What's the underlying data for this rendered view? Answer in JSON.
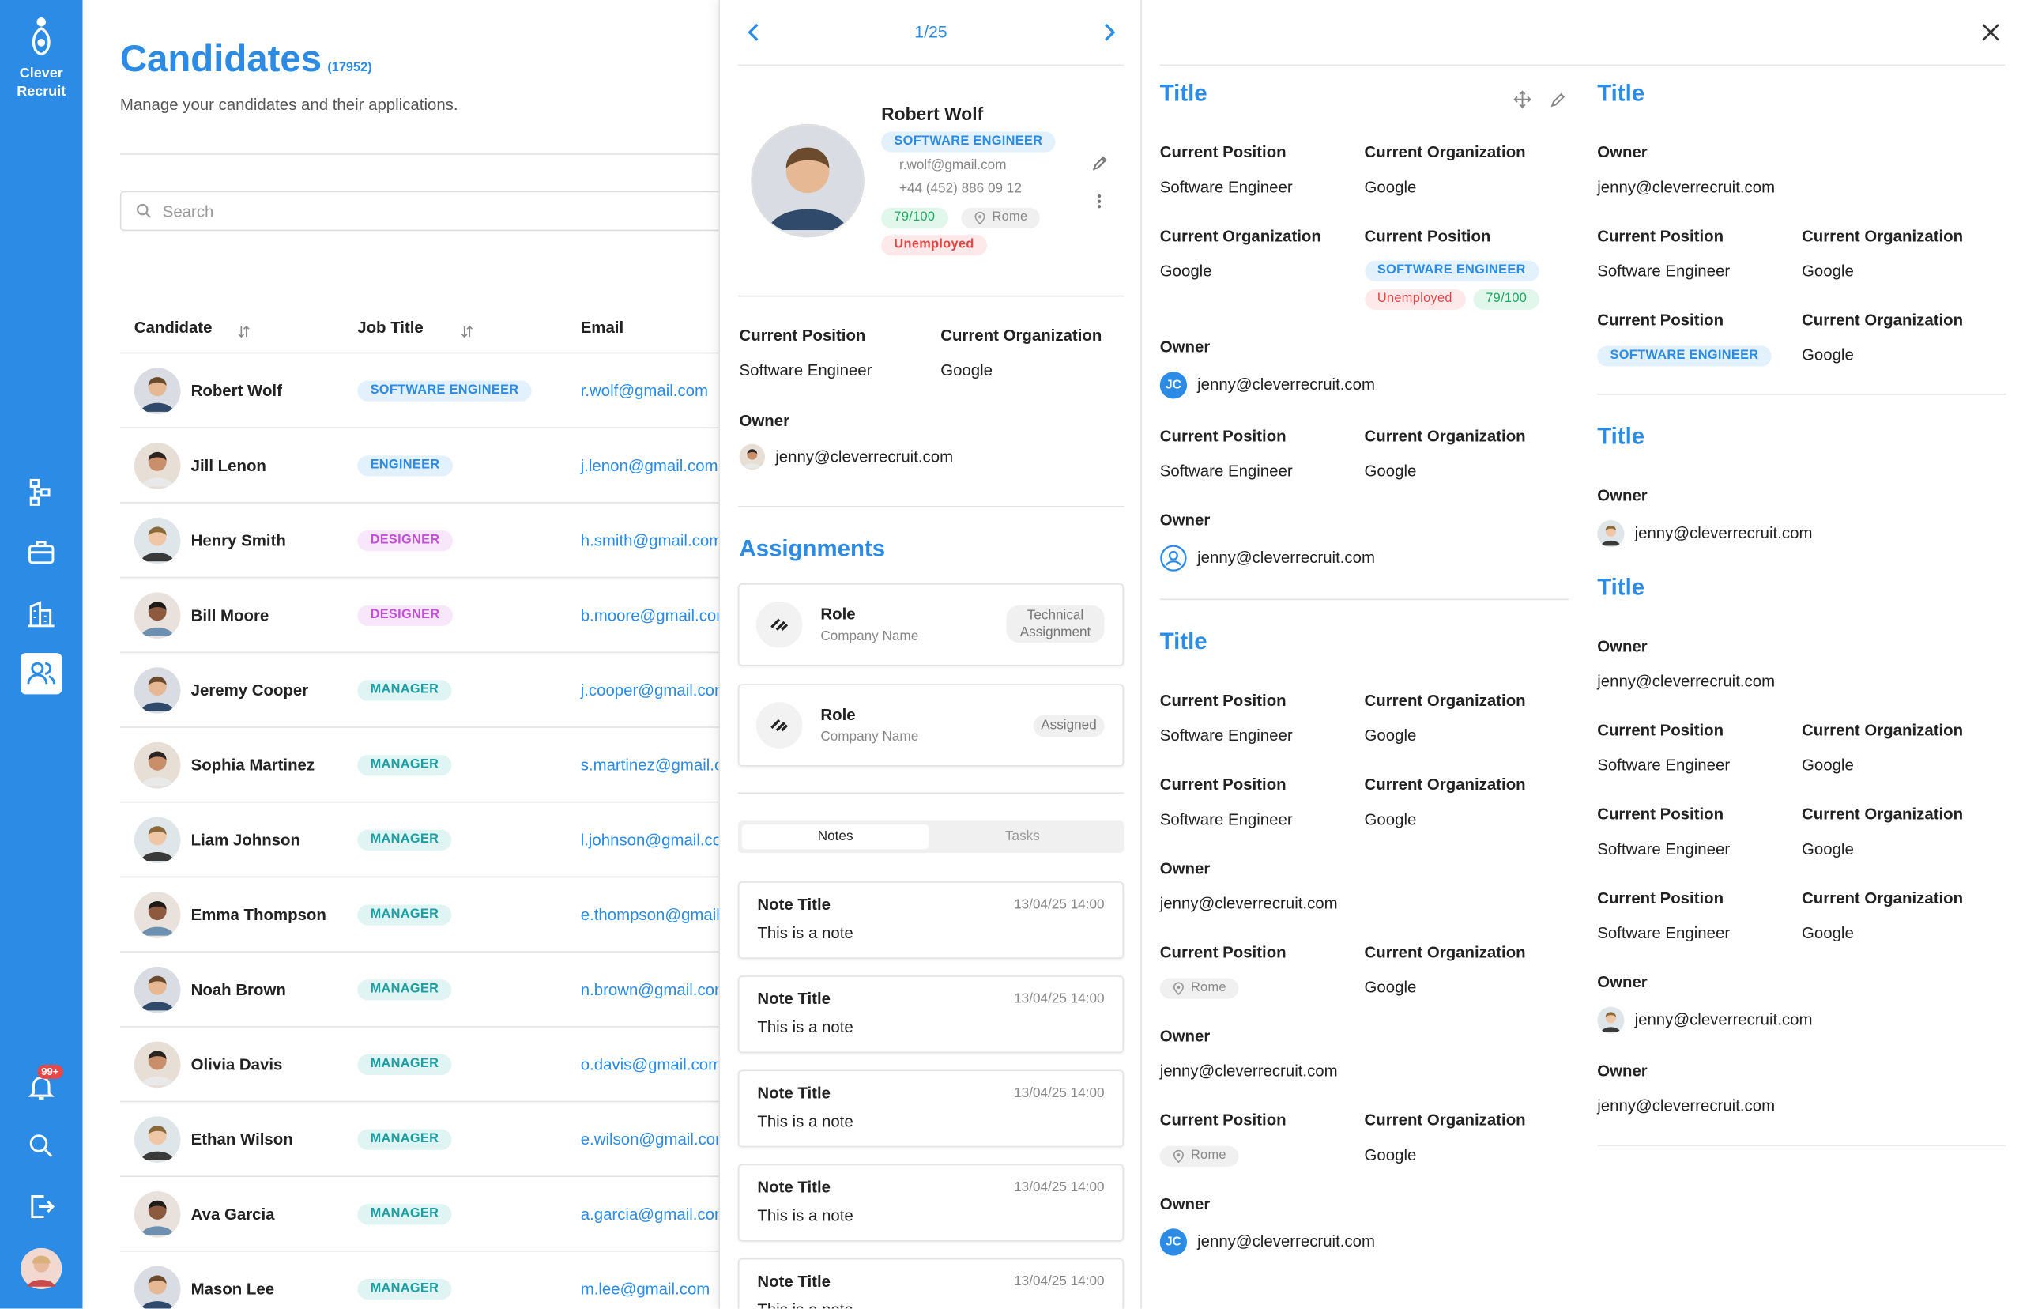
{
  "sidebar": {
    "brand_line1": "Clever",
    "brand_line2": "Recruit",
    "badge": "99+"
  },
  "header": {
    "title": "Candidates",
    "count": "(17952)",
    "subtitle": "Manage your candidates and their applications.",
    "search_placeholder": "Search"
  },
  "table": {
    "columns": [
      "Candidate",
      "Job Title",
      "Email"
    ],
    "rows": [
      {
        "name": "Robert Wolf",
        "job": "SOFTWARE ENGINEER",
        "email": "r.wolf@gmail.com",
        "job_style": "blue"
      },
      {
        "name": "Jill Lenon",
        "job": "ENGINEER",
        "email": "j.lenon@gmail.com",
        "job_style": "blue"
      },
      {
        "name": "Henry Smith",
        "job": "DESIGNER",
        "email": "h.smith@gmail.com",
        "job_style": "purple"
      },
      {
        "name": "Bill Moore",
        "job": "DESIGNER",
        "email": "b.moore@gmail.com",
        "job_style": "purple"
      },
      {
        "name": "Jeremy Cooper",
        "job": "MANAGER",
        "email": "j.cooper@gmail.com",
        "job_style": "teal"
      },
      {
        "name": "Sophia Martinez",
        "job": "MANAGER",
        "email": "s.martinez@gmail.com",
        "job_style": "teal"
      },
      {
        "name": "Liam Johnson",
        "job": "MANAGER",
        "email": "l.johnson@gmail.com",
        "job_style": "teal"
      },
      {
        "name": "Emma Thompson",
        "job": "MANAGER",
        "email": "e.thompson@gmail.com",
        "job_style": "teal"
      },
      {
        "name": "Noah Brown",
        "job": "MANAGER",
        "email": "n.brown@gmail.com",
        "job_style": "teal"
      },
      {
        "name": "Olivia Davis",
        "job": "MANAGER",
        "email": "o.davis@gmail.com",
        "job_style": "teal"
      },
      {
        "name": "Ethan Wilson",
        "job": "MANAGER",
        "email": "e.wilson@gmail.com",
        "job_style": "teal"
      },
      {
        "name": "Ava Garcia",
        "job": "MANAGER",
        "email": "a.garcia@gmail.com",
        "job_style": "teal"
      },
      {
        "name": "Mason Lee",
        "job": "MANAGER",
        "email": "m.lee@gmail.com",
        "job_style": "teal"
      }
    ]
  },
  "detail": {
    "pager": "1/25",
    "name": "Robert Wolf",
    "role": "SOFTWARE ENGINEER",
    "email": "r.wolf@gmail.com",
    "phone": "+44 (452) 886 09 12",
    "score": "79/100",
    "location": "Rome",
    "status": "Unemployed",
    "fields": [
      {
        "label": "Current Position",
        "value": "Software Engineer"
      },
      {
        "label": "Current Organization",
        "value": "Google"
      }
    ],
    "owner": {
      "label": "Owner",
      "value": "jenny@cleverrecruit.com"
    },
    "assignments_title": "Assignments",
    "assignments": [
      {
        "role": "Role",
        "company": "Company Name",
        "status": "Technical Assignment"
      },
      {
        "role": "Role",
        "company": "Company Name",
        "status": "Assigned"
      }
    ],
    "tabs": [
      "Notes",
      "Tasks"
    ],
    "notes": [
      {
        "title": "Note Title",
        "date": "13/04/25 14:00",
        "text": "This is a note"
      },
      {
        "title": "Note Title",
        "date": "13/04/25 14:00",
        "text": "This is a note"
      },
      {
        "title": "Note Title",
        "date": "13/04/25 14:00",
        "text": "This is a note"
      },
      {
        "title": "Note Title",
        "date": "13/04/25 14:00",
        "text": "This is a note"
      },
      {
        "title": "Note Title",
        "date": "13/04/25 14:00",
        "text": "This is a note"
      }
    ]
  },
  "panels": [
    {
      "blocks": [
        {
          "title": "Title",
          "actions": true
        },
        {
          "fields": [
            {
              "label": "Current Position",
              "value": "Software Engineer"
            },
            {
              "label": "Current Organization",
              "value": "Google"
            }
          ]
        },
        {
          "fields": [
            {
              "label": "Current Organization",
              "value": "Google"
            },
            {
              "label": "Current Position",
              "chips": [
                {
                  "text": "SOFTWARE ENGINEER",
                  "style": "blue"
                },
                {
                  "text": "Unemployed",
                  "style": "red"
                },
                {
                  "text": "79/100",
                  "style": "green"
                }
              ]
            }
          ]
        },
        {
          "fields": [
            {
              "label": "Owner",
              "value": "jenny@cleverrecruit.com",
              "avatar": "initials",
              "initials": "JC"
            }
          ]
        },
        {
          "fields": [
            {
              "label": "Current Position",
              "value": "Software Engineer"
            },
            {
              "label": "Current Organization",
              "value": "Google"
            }
          ]
        },
        {
          "fields": [
            {
              "label": "Owner",
              "value": "jenny@cleverrecruit.com",
              "avatar": "icon"
            }
          ]
        },
        {
          "divider": true
        },
        {
          "title": "Title"
        },
        {
          "fields": [
            {
              "label": "Current Position",
              "value": "Software Engineer"
            },
            {
              "label": "Current Organization",
              "value": "Google"
            }
          ]
        },
        {
          "fields": [
            {
              "label": "Current Position",
              "value": "Software Engineer"
            },
            {
              "label": "Current Organization",
              "value": "Google"
            }
          ]
        },
        {
          "fields": [
            {
              "label": "Owner",
              "value": "jenny@cleverrecruit.com"
            }
          ]
        },
        {
          "fields": [
            {
              "label": "Current Position",
              "chips": [
                {
                  "text": "Rome",
                  "style": "loc"
                }
              ]
            },
            {
              "label": "Current Organization",
              "value": "Google"
            }
          ]
        },
        {
          "fields": [
            {
              "label": "Owner",
              "value": "jenny@cleverrecruit.com"
            }
          ]
        },
        {
          "fields": [
            {
              "label": "Current Position",
              "chips": [
                {
                  "text": "Rome",
                  "style": "loc"
                }
              ]
            },
            {
              "label": "Current Organization",
              "value": "Google"
            }
          ]
        },
        {
          "fields": [
            {
              "label": "Owner",
              "value": "jenny@cleverrecruit.com",
              "avatar": "initials",
              "initials": "JC"
            }
          ]
        }
      ]
    },
    {
      "blocks": [
        {
          "title": "Title"
        },
        {
          "fields": [
            {
              "label": "Owner",
              "value": "jenny@cleverrecruit.com"
            }
          ]
        },
        {
          "fields": [
            {
              "label": "Current Position",
              "value": "Software Engineer"
            },
            {
              "label": "Current Organization",
              "value": "Google"
            }
          ]
        },
        {
          "fields": [
            {
              "label": "Current Position",
              "chips": [
                {
                  "text": "SOFTWARE ENGINEER",
                  "style": "blue"
                }
              ]
            },
            {
              "label": "Current Organization",
              "value": "Google"
            }
          ]
        },
        {
          "divider": true
        },
        {
          "title": "Title"
        },
        {
          "fields": [
            {
              "label": "Owner",
              "value": "jenny@cleverrecruit.com",
              "avatar": "photo"
            }
          ]
        },
        {
          "title": "Title"
        },
        {
          "fields": [
            {
              "label": "Owner",
              "value": "jenny@cleverrecruit.com"
            }
          ]
        },
        {
          "fields": [
            {
              "label": "Current Position",
              "value": "Software Engineer"
            },
            {
              "label": "Current Organization",
              "value": "Google"
            }
          ]
        },
        {
          "fields": [
            {
              "label": "Current Position",
              "value": "Software Engineer"
            },
            {
              "label": "Current Organization",
              "value": "Google"
            }
          ]
        },
        {
          "fields": [
            {
              "label": "Current Position",
              "value": "Software Engineer"
            },
            {
              "label": "Current Organization",
              "value": "Google"
            }
          ]
        },
        {
          "fields": [
            {
              "label": "Owner",
              "value": "jenny@cleverrecruit.com",
              "avatar": "photo"
            }
          ]
        },
        {
          "fields": [
            {
              "label": "Owner",
              "value": "jenny@cleverrecruit.com"
            }
          ]
        },
        {
          "divider": true
        }
      ]
    }
  ]
}
